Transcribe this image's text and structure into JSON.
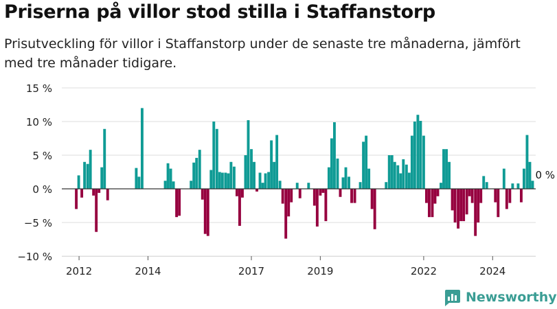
{
  "title": "Priserna på villor stod stilla i Staffanstorp",
  "subtitle": "Prisutveckling för villor i Staffanstorp under de senaste tre månaderna, jämfört med tre månader tidigare.",
  "brand": {
    "name": "Newsworthy",
    "icon": "bar-chart-logo-icon"
  },
  "colors": {
    "positive": "#0f9b95",
    "negative": "#96003f",
    "grid": "#dddddd",
    "axis": "#333333",
    "brand": "#3a9d94"
  },
  "chart_data": {
    "type": "bar",
    "ylim": [
      -10,
      15
    ],
    "yticks": [
      15,
      10,
      5,
      0,
      -5,
      -10
    ],
    "ytick_labels": [
      "15 %",
      "10 %",
      "5 %",
      "0 %",
      "−5 %",
      "−10 %"
    ],
    "xticks": [
      {
        "value": 2012,
        "label": "2012"
      },
      {
        "value": 2014,
        "label": "2014"
      },
      {
        "value": 2017,
        "label": "2017"
      },
      {
        "value": 2019,
        "label": "2019"
      },
      {
        "value": 2022,
        "label": "2022"
      },
      {
        "value": 2024,
        "label": "2024"
      }
    ],
    "xlim": [
      2011.5,
      2025.25
    ],
    "grid": true,
    "annotation": "0 %",
    "bars": [
      [
        2011.92,
        -3
      ],
      [
        2011.99,
        2
      ],
      [
        2012.08,
        -1.3
      ],
      [
        2012.16,
        4
      ],
      [
        2012.25,
        3.7
      ],
      [
        2012.33,
        5.8
      ],
      [
        2012.42,
        -1
      ],
      [
        2012.5,
        -6.4
      ],
      [
        2012.58,
        -0.6
      ],
      [
        2012.66,
        3.2
      ],
      [
        2012.74,
        8.9
      ],
      [
        2012.83,
        -1.7
      ],
      [
        2013.66,
        3.1
      ],
      [
        2013.74,
        1.8
      ],
      [
        2013.83,
        12
      ],
      [
        2014.5,
        1.2
      ],
      [
        2014.58,
        3.8
      ],
      [
        2014.66,
        3
      ],
      [
        2014.74,
        1.1
      ],
      [
        2014.83,
        -4.2
      ],
      [
        2014.91,
        -4
      ],
      [
        2015.25,
        1.2
      ],
      [
        2015.33,
        3.9
      ],
      [
        2015.41,
        4.6
      ],
      [
        2015.5,
        5.8
      ],
      [
        2015.58,
        -1.6
      ],
      [
        2015.66,
        -6.7
      ],
      [
        2015.74,
        -7
      ],
      [
        2015.83,
        2.8
      ],
      [
        2015.91,
        10
      ],
      [
        2016.0,
        8.9
      ],
      [
        2016.08,
        2.5
      ],
      [
        2016.16,
        2.4
      ],
      [
        2016.25,
        2.4
      ],
      [
        2016.33,
        2.3
      ],
      [
        2016.41,
        4
      ],
      [
        2016.5,
        3.3
      ],
      [
        2016.58,
        -1.1
      ],
      [
        2016.66,
        -5.5
      ],
      [
        2016.74,
        -1.3
      ],
      [
        2016.83,
        5
      ],
      [
        2016.91,
        10.2
      ],
      [
        2017.0,
        5.9
      ],
      [
        2017.08,
        4
      ],
      [
        2017.16,
        -0.4
      ],
      [
        2017.25,
        2.4
      ],
      [
        2017.33,
        0.9
      ],
      [
        2017.41,
        2.3
      ],
      [
        2017.5,
        2.5
      ],
      [
        2017.58,
        7.2
      ],
      [
        2017.66,
        4
      ],
      [
        2017.74,
        8
      ],
      [
        2017.83,
        1.2
      ],
      [
        2017.91,
        -2.2
      ],
      [
        2018.0,
        -7.4
      ],
      [
        2018.08,
        -4.1
      ],
      [
        2018.16,
        -2
      ],
      [
        2018.33,
        0.9
      ],
      [
        2018.41,
        -1.4
      ],
      [
        2018.66,
        0.9
      ],
      [
        2018.83,
        -2.5
      ],
      [
        2018.91,
        -5.6
      ],
      [
        2019.0,
        -1
      ],
      [
        2019.08,
        -0.6
      ],
      [
        2019.16,
        -4.8
      ],
      [
        2019.25,
        3.2
      ],
      [
        2019.33,
        7.5
      ],
      [
        2019.41,
        9.9
      ],
      [
        2019.5,
        4.5
      ],
      [
        2019.58,
        -1.2
      ],
      [
        2019.66,
        1.7
      ],
      [
        2019.74,
        3.2
      ],
      [
        2019.83,
        1.8
      ],
      [
        2019.91,
        -2.1
      ],
      [
        2020.0,
        -2.1
      ],
      [
        2020.16,
        1
      ],
      [
        2020.25,
        7
      ],
      [
        2020.33,
        7.9
      ],
      [
        2020.41,
        3
      ],
      [
        2020.5,
        -3
      ],
      [
        2020.58,
        -6
      ],
      [
        2020.91,
        1
      ],
      [
        2021.0,
        5
      ],
      [
        2021.08,
        5
      ],
      [
        2021.16,
        4
      ],
      [
        2021.25,
        3.5
      ],
      [
        2021.33,
        2.3
      ],
      [
        2021.41,
        4.4
      ],
      [
        2021.5,
        3.6
      ],
      [
        2021.58,
        2.4
      ],
      [
        2021.66,
        7.9
      ],
      [
        2021.74,
        10
      ],
      [
        2021.83,
        11
      ],
      [
        2021.91,
        10.1
      ],
      [
        2022.0,
        7.9
      ],
      [
        2022.08,
        -2.1
      ],
      [
        2022.16,
        -4.2
      ],
      [
        2022.25,
        -4.2
      ],
      [
        2022.33,
        -2.2
      ],
      [
        2022.41,
        -1.1
      ],
      [
        2022.5,
        0.9
      ],
      [
        2022.58,
        5.9
      ],
      [
        2022.66,
        5.9
      ],
      [
        2022.74,
        4
      ],
      [
        2022.83,
        -3.2
      ],
      [
        2022.91,
        -5
      ],
      [
        2023.0,
        -5.9
      ],
      [
        2023.08,
        -4.8
      ],
      [
        2023.16,
        -4.8
      ],
      [
        2023.25,
        -3.8
      ],
      [
        2023.33,
        -1.1
      ],
      [
        2023.41,
        -2.1
      ],
      [
        2023.5,
        -7
      ],
      [
        2023.58,
        -5
      ],
      [
        2023.66,
        -2.1
      ],
      [
        2023.74,
        1.9
      ],
      [
        2023.83,
        1
      ],
      [
        2024.08,
        -2
      ],
      [
        2024.16,
        -4.2
      ],
      [
        2024.33,
        3
      ],
      [
        2024.41,
        -3
      ],
      [
        2024.5,
        -2.1
      ],
      [
        2024.58,
        0.8
      ],
      [
        2024.74,
        0.8
      ],
      [
        2024.83,
        -2
      ],
      [
        2024.91,
        3
      ],
      [
        2025.0,
        8
      ],
      [
        2025.08,
        4
      ],
      [
        2025.16,
        1.2
      ]
    ]
  }
}
